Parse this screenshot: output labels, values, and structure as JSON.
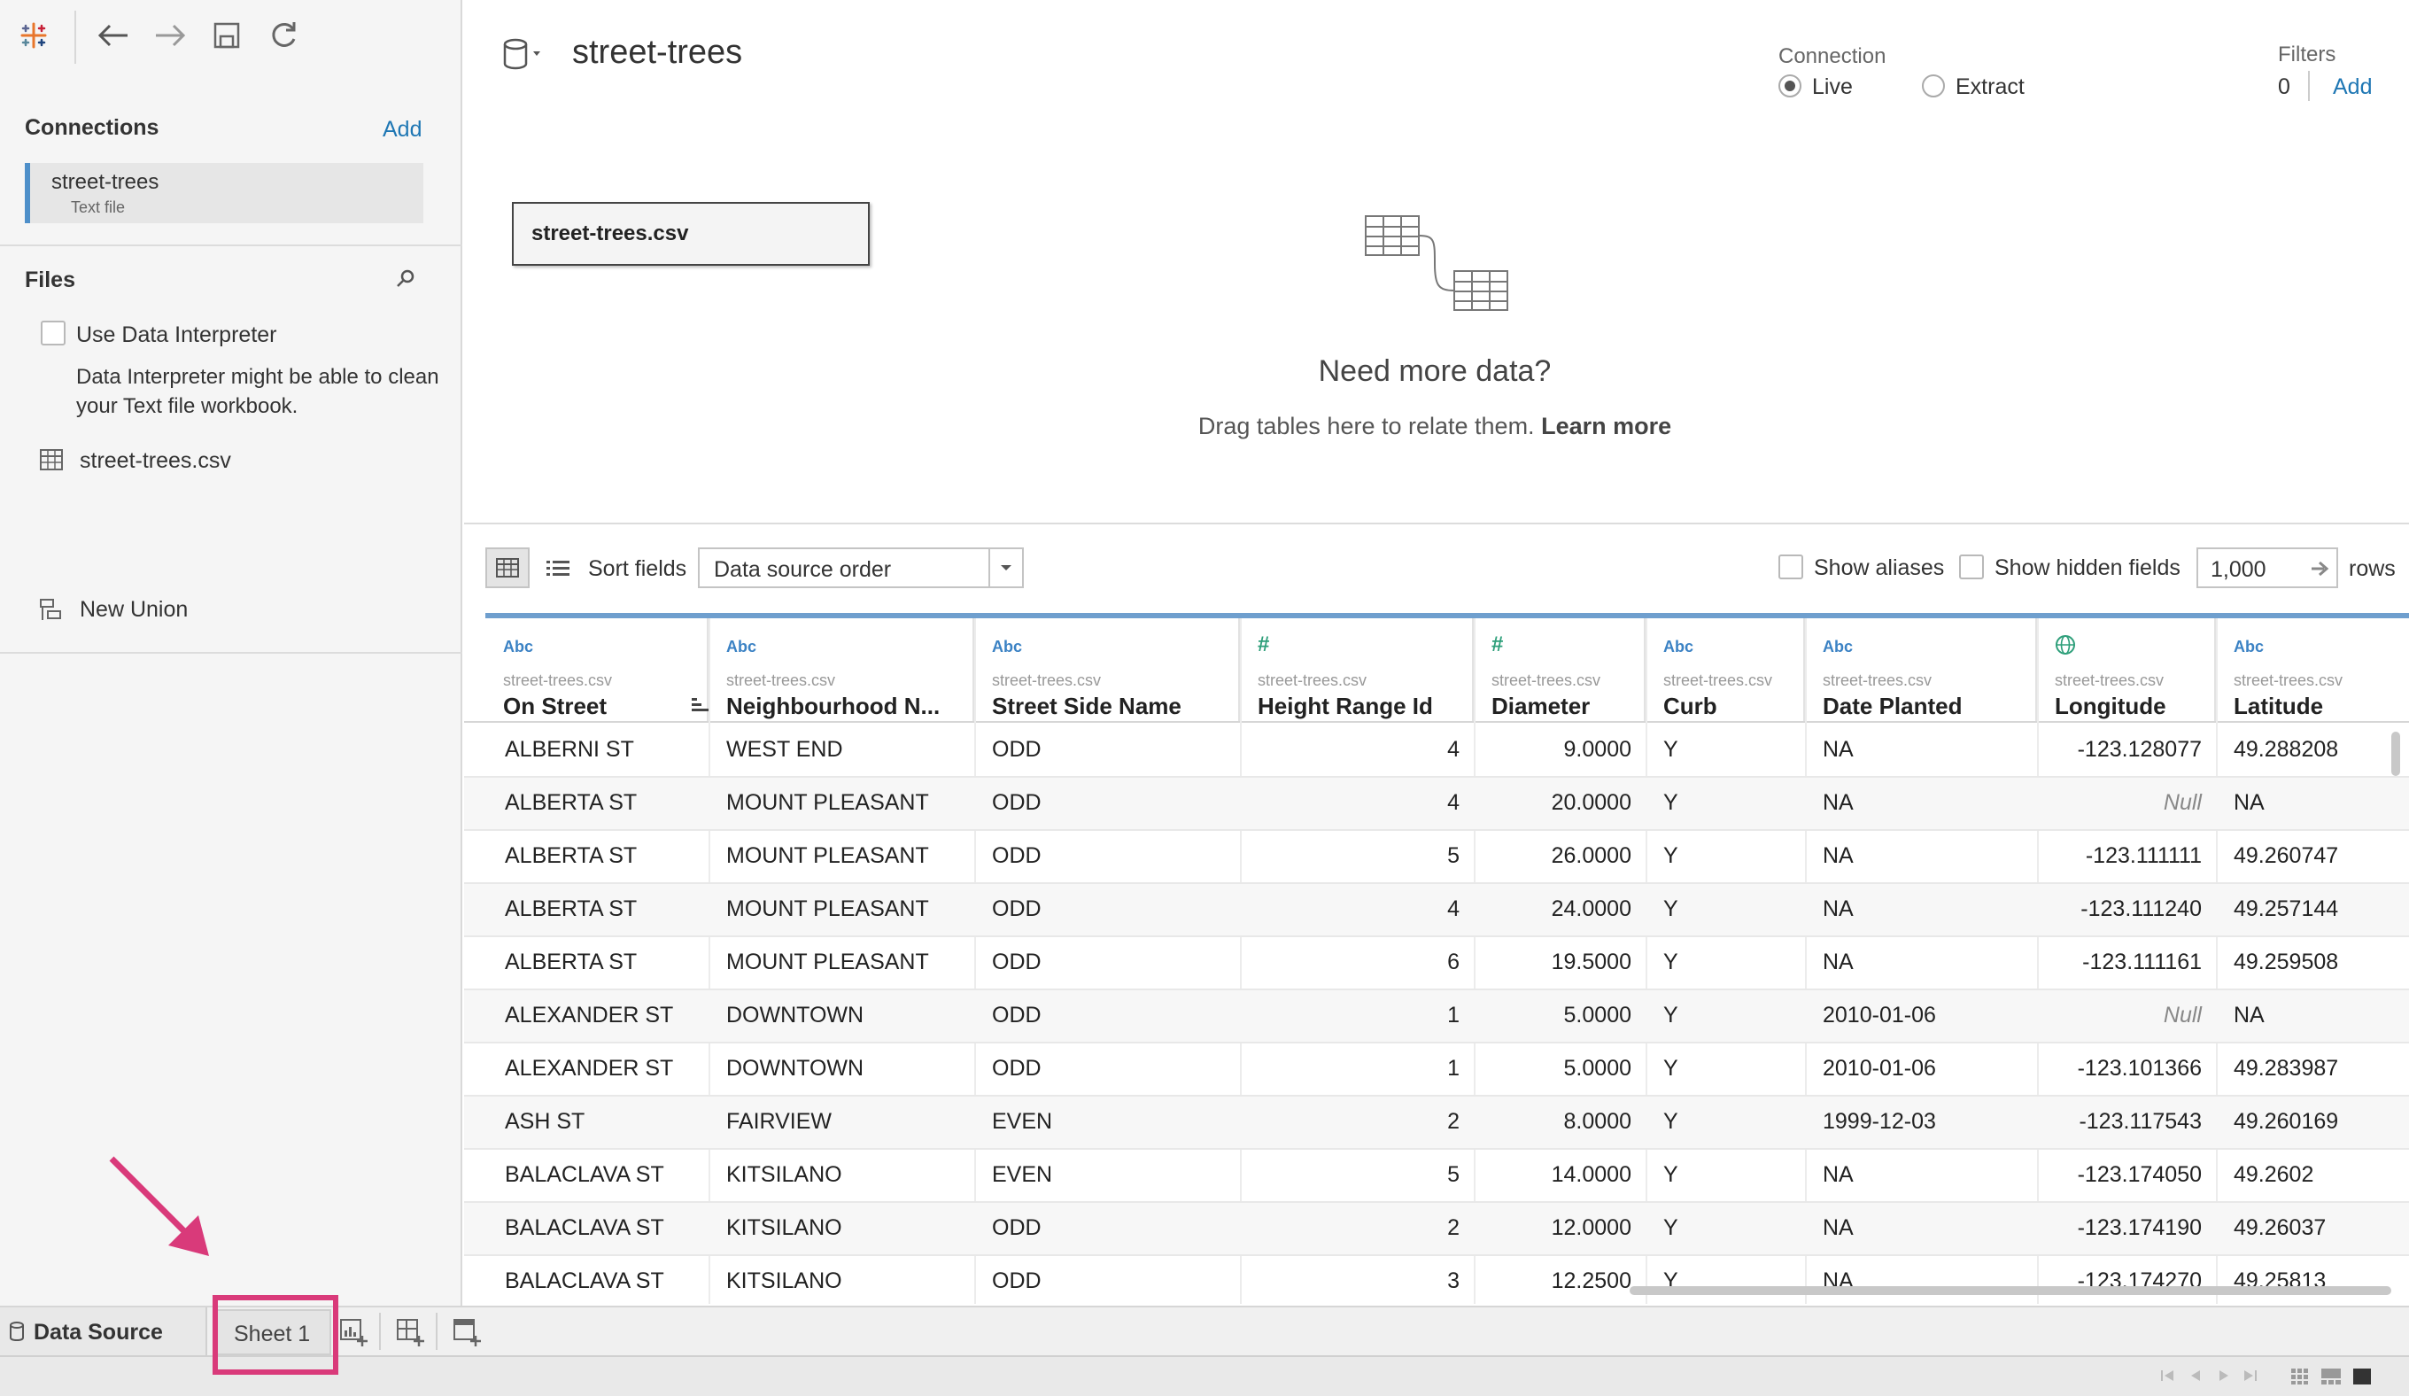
{
  "datasource": {
    "title": "street-trees"
  },
  "connections": {
    "heading": "Connections",
    "add_label": "Add",
    "items": [
      {
        "name": "street-trees",
        "type": "Text file"
      }
    ]
  },
  "files": {
    "heading": "Files",
    "use_interpreter_label": "Use Data Interpreter",
    "interpreter_note": "Data Interpreter might be able to clean your Text file workbook.",
    "file_name": "street-trees.csv",
    "new_union_label": "New Union"
  },
  "connection_mode": {
    "heading": "Connection",
    "live_label": "Live",
    "extract_label": "Extract",
    "selected": "Live"
  },
  "filters": {
    "heading": "Filters",
    "count": "0",
    "add_label": "Add"
  },
  "canvas": {
    "table_name": "street-trees.csv",
    "empty_title": "Need more data?",
    "empty_hint": "Drag tables here to relate them.",
    "learn_more": "Learn more"
  },
  "grid_toolbar": {
    "sort_label": "Sort fields",
    "sort_value": "Data source order",
    "show_aliases_label": "Show aliases",
    "show_hidden_label": "Show hidden fields",
    "rows_value": "1,000",
    "rows_label": "rows"
  },
  "grid": {
    "columns": [
      {
        "type": "Abc",
        "source": "street-trees.csv",
        "name": "On Street"
      },
      {
        "type": "Abc",
        "source": "street-trees.csv",
        "name": "Neighbourhood N..."
      },
      {
        "type": "Abc",
        "source": "street-trees.csv",
        "name": "Street Side Name"
      },
      {
        "type": "#",
        "source": "street-trees.csv",
        "name": "Height Range Id"
      },
      {
        "type": "#",
        "source": "street-trees.csv",
        "name": "Diameter"
      },
      {
        "type": "Abc",
        "source": "street-trees.csv",
        "name": "Curb"
      },
      {
        "type": "Abc",
        "source": "street-trees.csv",
        "name": "Date Planted"
      },
      {
        "type": "globe",
        "source": "street-trees.csv",
        "name": "Longitude"
      },
      {
        "type": "Abc",
        "source": "street-trees.csv",
        "name": "Latitude"
      }
    ],
    "rows": [
      [
        "ALBERNI ST",
        "WEST END",
        "ODD",
        "4",
        "9.0000",
        "Y",
        "NA",
        "-123.128077",
        "49.288208"
      ],
      [
        "ALBERTA ST",
        "MOUNT PLEASANT",
        "ODD",
        "4",
        "20.0000",
        "Y",
        "NA",
        "Null",
        "NA"
      ],
      [
        "ALBERTA ST",
        "MOUNT PLEASANT",
        "ODD",
        "5",
        "26.0000",
        "Y",
        "NA",
        "-123.111111",
        "49.260747"
      ],
      [
        "ALBERTA ST",
        "MOUNT PLEASANT",
        "ODD",
        "4",
        "24.0000",
        "Y",
        "NA",
        "-123.111240",
        "49.257144"
      ],
      [
        "ALBERTA ST",
        "MOUNT PLEASANT",
        "ODD",
        "6",
        "19.5000",
        "Y",
        "NA",
        "-123.111161",
        "49.259508"
      ],
      [
        "ALEXANDER ST",
        "DOWNTOWN",
        "ODD",
        "1",
        "5.0000",
        "Y",
        "2010-01-06",
        "Null",
        "NA"
      ],
      [
        "ALEXANDER ST",
        "DOWNTOWN",
        "ODD",
        "1",
        "5.0000",
        "Y",
        "2010-01-06",
        "-123.101366",
        "49.283987"
      ],
      [
        "ASH ST",
        "FAIRVIEW",
        "EVEN",
        "2",
        "8.0000",
        "Y",
        "1999-12-03",
        "-123.117543",
        "49.260169"
      ],
      [
        "BALACLAVA ST",
        "KITSILANO",
        "EVEN",
        "5",
        "14.0000",
        "Y",
        "NA",
        "-123.174050",
        "49.2602"
      ],
      [
        "BALACLAVA ST",
        "KITSILANO",
        "ODD",
        "2",
        "12.0000",
        "Y",
        "NA",
        "-123.174190",
        "49.26037"
      ],
      [
        "BALACLAVA ST",
        "KITSILANO",
        "ODD",
        "3",
        "12.2500",
        "Y",
        "NA",
        "-123.174270",
        "49.25813"
      ]
    ]
  },
  "tabs": {
    "data_source_label": "Data Source",
    "sheet1_label": "Sheet 1"
  },
  "colors": {
    "accent": "#1f77b4",
    "highlight": "#d93a7a",
    "grid_header_line": "#6f9fce"
  }
}
